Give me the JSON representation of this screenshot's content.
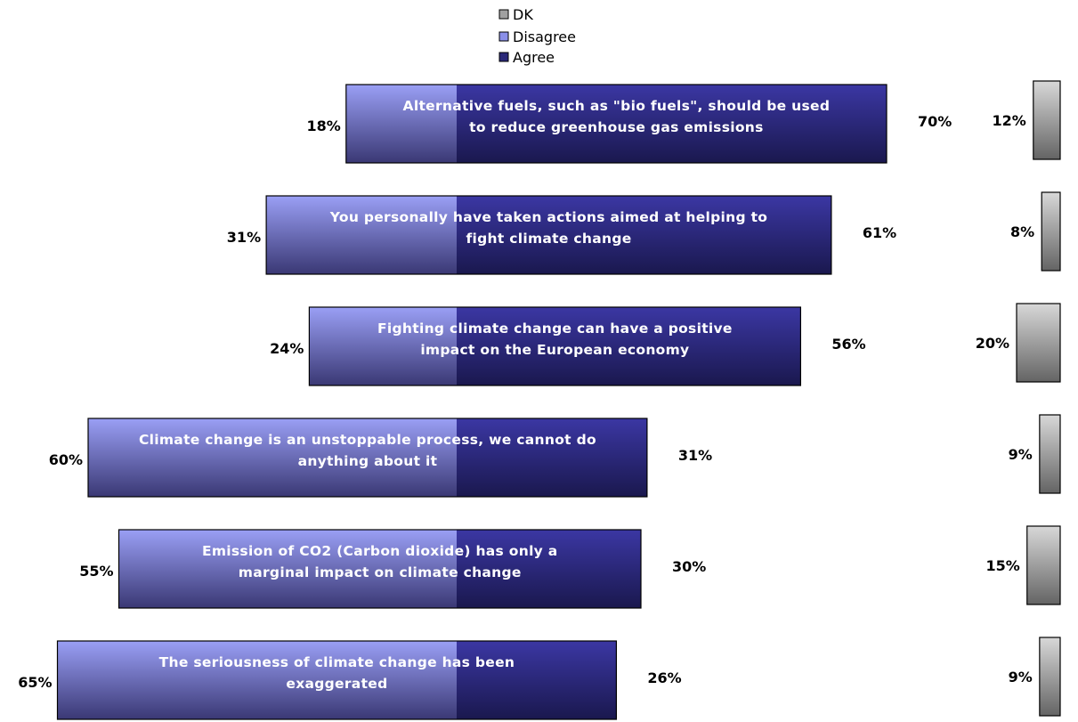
{
  "chart_data": {
    "type": "bar",
    "orientation": "horizontal",
    "stacked": "diverging",
    "legend": {
      "position": "top-center",
      "entries": [
        {
          "name": "DK",
          "color": "#9a9a9a"
        },
        {
          "name": "Disagree",
          "color": "#8a8fe8"
        },
        {
          "name": "Agree",
          "color": "#2a2878"
        }
      ]
    },
    "categories": [
      "Alternative fuels, such as \"bio fuels\", should be used to reduce greenhouse gas emissions",
      "You personally have taken actions aimed at helping to fight climate change",
      "Fighting climate change can have a positive impact on the European economy",
      "Climate change is an unstoppable process, we cannot do anything about it",
      "Emission of CO2 (Carbon dioxide) has only a marginal impact on climate change",
      "The seriousness of climate change has been exaggerated"
    ],
    "category_lines": [
      [
        "Alternative fuels, such as \"bio fuels\", should be used",
        "to reduce greenhouse gas emissions"
      ],
      [
        "You personally have taken actions aimed at helping to",
        "fight climate change"
      ],
      [
        "Fighting climate change can have a positive",
        "impact on the European economy"
      ],
      [
        "Climate change is an unstoppable process, we cannot do",
        "anything about it"
      ],
      [
        "Emission of CO2 (Carbon dioxide) has only a",
        "marginal impact on climate change"
      ],
      [
        "The seriousness of climate change has been",
        "exaggerated"
      ]
    ],
    "series": [
      {
        "name": "Disagree",
        "values": [
          18,
          31,
          24,
          60,
          55,
          65
        ],
        "labels": [
          "18%",
          "31%",
          "24%",
          "60%",
          "55%",
          "65%"
        ]
      },
      {
        "name": "Agree",
        "values": [
          70,
          61,
          56,
          31,
          30,
          26
        ],
        "labels": [
          "70%",
          "61%",
          "56%",
          "31%",
          "30%",
          "26%"
        ]
      },
      {
        "name": "DK",
        "values": [
          12,
          8,
          20,
          9,
          15,
          9
        ],
        "labels": [
          "12%",
          "8%",
          "20%",
          "9%",
          "15%",
          "9%"
        ]
      }
    ],
    "colors": {
      "disagree_light": "#9096f0",
      "disagree_dark": "#3c3a78",
      "agree_light": "#3a36a0",
      "agree_dark": "#1a1850",
      "dk_light": "#d4d4d4",
      "dk_dark": "#6a6a6a"
    }
  }
}
